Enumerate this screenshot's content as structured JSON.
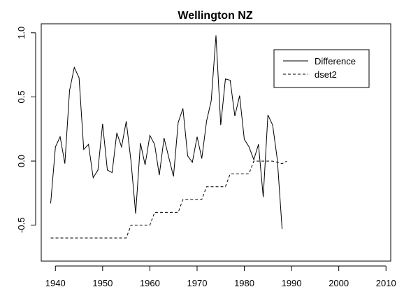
{
  "chart_data": {
    "type": "line",
    "title": "Wellington NZ",
    "xlabel": "",
    "ylabel": "",
    "xlim": [
      1937,
      2011
    ],
    "ylim": [
      -0.78,
      1.07
    ],
    "xticks": [
      1940,
      1950,
      1960,
      1970,
      1980,
      1990,
      2000,
      2010
    ],
    "yticks": [
      -0.5,
      0.0,
      0.5,
      1.0
    ],
    "ytick_labels": [
      "-0.5",
      "0.0",
      "0.5",
      "1.0"
    ],
    "grid": false,
    "legend_position": "top-right",
    "series": [
      {
        "name": "Difference",
        "line_style": "solid",
        "color": "#000000",
        "x": [
          1939,
          1940,
          1941,
          1942,
          1943,
          1944,
          1945,
          1946,
          1947,
          1948,
          1949,
          1950,
          1951,
          1952,
          1953,
          1954,
          1955,
          1956,
          1957,
          1958,
          1959,
          1960,
          1961,
          1962,
          1963,
          1964,
          1965,
          1966,
          1967,
          1968,
          1969,
          1970,
          1971,
          1972,
          1973,
          1974,
          1975,
          1976,
          1977,
          1978,
          1979,
          1980,
          1981,
          1982,
          1983,
          1984,
          1985,
          1986,
          1987,
          1988
        ],
        "y": [
          -0.33,
          0.11,
          0.19,
          -0.02,
          0.55,
          0.73,
          0.65,
          0.09,
          0.13,
          -0.13,
          -0.07,
          0.29,
          -0.07,
          -0.09,
          0.22,
          0.11,
          0.31,
          0.0,
          -0.41,
          0.14,
          -0.03,
          0.2,
          0.13,
          -0.11,
          0.18,
          0.03,
          -0.12,
          0.3,
          0.41,
          0.04,
          -0.01,
          0.19,
          0.02,
          0.31,
          0.47,
          0.98,
          0.28,
          0.64,
          0.63,
          0.35,
          0.51,
          0.17,
          0.11,
          0.01,
          0.13,
          -0.28,
          0.36,
          0.28,
          0.01,
          -0.53
        ]
      },
      {
        "name": "dset2",
        "line_style": "dashed",
        "color": "#000000",
        "x": [
          1939,
          1940,
          1941,
          1942,
          1943,
          1944,
          1945,
          1946,
          1947,
          1948,
          1949,
          1950,
          1951,
          1952,
          1953,
          1954,
          1955,
          1956,
          1957,
          1958,
          1959,
          1960,
          1961,
          1962,
          1963,
          1964,
          1965,
          1966,
          1967,
          1968,
          1969,
          1970,
          1971,
          1972,
          1973,
          1974,
          1975,
          1976,
          1977,
          1978,
          1979,
          1980,
          1981,
          1982,
          1983,
          1984,
          1985,
          1986,
          1987,
          1988,
          1989
        ],
        "y": [
          -0.6,
          -0.6,
          -0.6,
          -0.6,
          -0.6,
          -0.6,
          -0.6,
          -0.6,
          -0.6,
          -0.6,
          -0.6,
          -0.6,
          -0.6,
          -0.6,
          -0.6,
          -0.6,
          -0.6,
          -0.5,
          -0.5,
          -0.5,
          -0.5,
          -0.5,
          -0.4,
          -0.4,
          -0.4,
          -0.4,
          -0.4,
          -0.4,
          -0.3,
          -0.3,
          -0.3,
          -0.3,
          -0.3,
          -0.2,
          -0.2,
          -0.2,
          -0.2,
          -0.2,
          -0.1,
          -0.1,
          -0.1,
          -0.1,
          -0.1,
          0.0,
          0.0,
          0.0,
          0.0,
          0.0,
          -0.01,
          -0.02,
          0.0
        ]
      }
    ]
  }
}
